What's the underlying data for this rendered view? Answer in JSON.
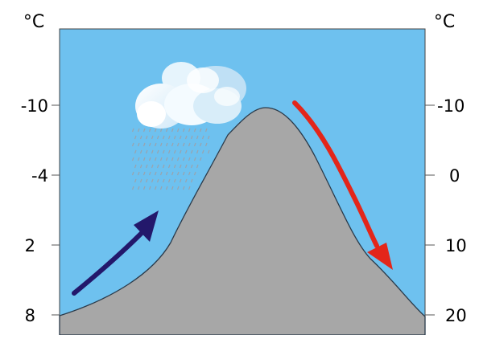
{
  "left_axis": {
    "unit": "°C",
    "ticks": [
      "-10",
      "-4",
      "2",
      "8"
    ]
  },
  "right_axis": {
    "unit": "°C",
    "ticks": [
      "-10",
      "0",
      "10",
      "20"
    ]
  },
  "colors": {
    "sky": "#6ec1ef",
    "mountain": "#a7a7a7",
    "outline": "#2a3a4a",
    "windward_arrow": "#23186b",
    "leeward_arrow": "#e3261a",
    "cloud": "#f4fbff",
    "rain": "#9aa3ad"
  },
  "icons": {
    "cloud": "cloud-icon",
    "rain": "rain-icon",
    "windward_arrow": "arrow-up-right-icon",
    "leeward_arrow": "arrow-down-right-icon"
  }
}
